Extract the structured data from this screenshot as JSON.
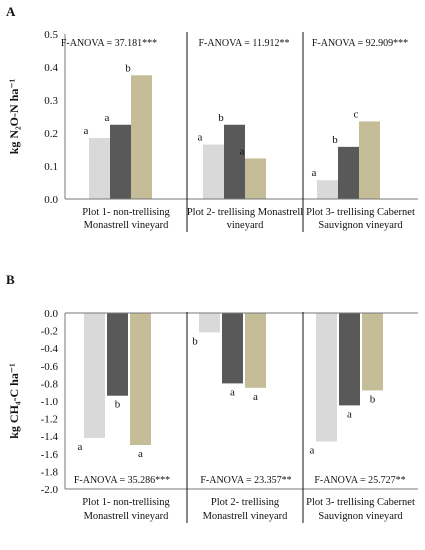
{
  "chart_data": [
    {
      "type": "bar",
      "panel": "A",
      "ylabel": "kg N₂O-N ha⁻¹",
      "ylim": [
        0,
        0.5
      ],
      "yticks": [
        "0.0",
        "0.1",
        "0.2",
        "0.3",
        "0.4",
        "0.5"
      ],
      "yvalues": [
        0,
        0.1,
        0.2,
        0.3,
        0.4,
        0.5
      ],
      "grid": false,
      "categories": [
        [
          "Plot 1- non-trellising",
          "Monastrell vineyard"
        ],
        [
          "Plot 2- trellising Monastrell",
          "vineyard"
        ],
        [
          "Plot 3- trellising Cabernet",
          "Sauvignon vineyard"
        ]
      ],
      "anova": [
        "F-ANOVA = 37.181***",
        "F-ANOVA = 11.912**",
        "F-ANOVA = 92.909***"
      ],
      "series": [
        {
          "color": "#d9d9d9",
          "values": [
            0.185,
            0.165,
            0.057
          ],
          "letters": [
            "a",
            "a",
            "a"
          ]
        },
        {
          "color": "#595959",
          "values": [
            0.225,
            0.225,
            0.158
          ],
          "letters": [
            "a",
            "b",
            "b"
          ]
        },
        {
          "color": "#c4bd97",
          "values": [
            0.375,
            0.123,
            0.235
          ],
          "letters": [
            "b",
            "a",
            "c"
          ]
        }
      ]
    },
    {
      "type": "bar",
      "panel": "B",
      "ylabel": "kg CH₄-C ha⁻¹",
      "ylim": [
        -2.0,
        0.0
      ],
      "yticks": [
        "0.0",
        "-0.2",
        "-0.4",
        "-0.6",
        "-0.8",
        "-1.0",
        "-1.2",
        "-1.4",
        "-1.6",
        "-1.8",
        "-2.0"
      ],
      "yvalues": [
        0,
        -0.2,
        -0.4,
        -0.6,
        -0.8,
        -1.0,
        -1.2,
        -1.4,
        -1.6,
        -1.8,
        -2.0
      ],
      "grid": false,
      "categories": [
        [
          "Plot 1- non-trellising",
          "Monastrell vineyard"
        ],
        [
          "Plot 2- trellising",
          "Monastrell vineyard"
        ],
        [
          "Plot 3- trellising Cabernet",
          "Sauvignon vineyard"
        ]
      ],
      "anova": [
        "F-ANOVA = 35.286***",
        "F-ANOVA = 23.357**",
        "F-ANOVA = 25.727**"
      ],
      "series": [
        {
          "color": "#d9d9d9",
          "values": [
            -1.42,
            -0.22,
            -1.46
          ],
          "letters": [
            "a",
            "b",
            "a"
          ]
        },
        {
          "color": "#595959",
          "values": [
            -0.94,
            -0.8,
            -1.05
          ],
          "letters": [
            "b",
            "a",
            "a"
          ]
        },
        {
          "color": "#c4bd97",
          "values": [
            -1.5,
            -0.85,
            -0.88
          ],
          "letters": [
            "a",
            "a",
            "b"
          ]
        }
      ]
    }
  ]
}
